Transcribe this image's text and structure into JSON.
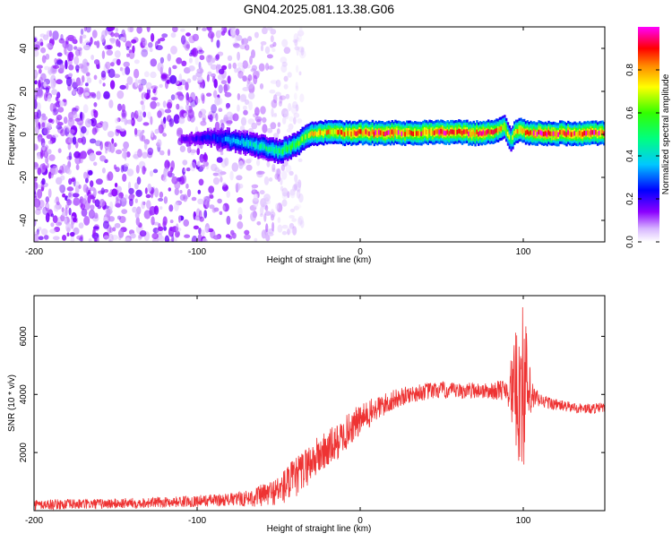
{
  "title": "GN04.2025.081.13.38.G06",
  "top_panel": {
    "xlabel": "Height of straight line (km)",
    "ylabel": "Frequency (Hz)",
    "colorbar_label": "Normalized spectral amplitude"
  },
  "bottom_panel": {
    "xlabel": "Height of straight line (km)",
    "ylabel": "SNR (10 * v/v)"
  },
  "chart_data": [
    {
      "type": "heatmap",
      "title": "GN04.2025.081.13.38.G06",
      "xlabel": "Height of straight line (km)",
      "ylabel": "Frequency (Hz)",
      "xlim": [
        -200,
        150
      ],
      "ylim": [
        -50,
        50
      ],
      "x_ticks": [
        -200,
        -100,
        0,
        100
      ],
      "y_ticks": [
        -40,
        -20,
        0,
        20,
        40
      ],
      "colorbar": {
        "label": "Normalized spectral amplitude",
        "range": [
          0,
          1
        ],
        "ticks": [
          0.0,
          0.2,
          0.4,
          0.6,
          0.8
        ],
        "colors": [
          "#ffffff",
          "#e9d5ff",
          "#8b00ff",
          "#0000ff",
          "#00c8ff",
          "#00ff66",
          "#ffff00",
          "#ff8800",
          "#ff0000",
          "#ff00ff"
        ]
      },
      "ridge": {
        "x": [
          -110,
          -100,
          -90,
          -80,
          -70,
          -60,
          -50,
          -40,
          -35,
          -30,
          -20,
          -10,
          0,
          10,
          20,
          30,
          40,
          50,
          60,
          70,
          80,
          88,
          92,
          95,
          98,
          102,
          110,
          120,
          130,
          140,
          150
        ],
        "y": [
          -2,
          -2,
          -1.5,
          -3,
          -4,
          -6,
          -8,
          -5,
          -2,
          0,
          1,
          0.5,
          1,
          0.5,
          1,
          0.5,
          1,
          0.8,
          1,
          0.5,
          1,
          3,
          -2,
          1,
          2,
          0.5,
          0.5,
          0.5,
          0.5,
          0.5,
          0.5
        ],
        "amplitude": [
          0.15,
          0.2,
          0.25,
          0.35,
          0.4,
          0.45,
          0.5,
          0.55,
          0.6,
          0.7,
          0.75,
          0.8,
          0.85,
          0.9,
          0.9,
          0.85,
          0.85,
          0.9,
          0.85,
          0.9,
          0.85,
          0.7,
          0.6,
          0.75,
          0.8,
          0.85,
          0.9,
          0.9,
          0.88,
          0.9,
          0.88
        ]
      },
      "noise_region": {
        "x_range": [
          -200,
          -40
        ],
        "amplitude": 0.15
      }
    },
    {
      "type": "line",
      "xlabel": "Height of straight line (km)",
      "ylabel": "SNR (10 * v/v)",
      "xlim": [
        -200,
        150
      ],
      "ylim": [
        0,
        7400
      ],
      "x_ticks": [
        -200,
        -100,
        0,
        100
      ],
      "y_ticks": [
        2000,
        4000,
        6000
      ],
      "color": "#ee3333",
      "series": [
        {
          "x": [
            -200,
            -180,
            -160,
            -140,
            -120,
            -100,
            -80,
            -70,
            -60,
            -50,
            -45,
            -40,
            -35,
            -30,
            -25,
            -20,
            -15,
            -10,
            -5,
            0,
            5,
            10,
            20,
            30,
            40,
            50,
            60,
            70,
            80,
            90,
            95,
            97,
            99,
            101,
            103,
            105,
            110,
            120,
            130,
            140,
            150
          ],
          "y": [
            200,
            220,
            230,
            260,
            290,
            330,
            380,
            420,
            520,
            700,
            900,
            1100,
            1400,
            1700,
            1900,
            2100,
            2300,
            2600,
            2900,
            3100,
            3300,
            3500,
            3800,
            4000,
            4100,
            4150,
            4100,
            4150,
            4100,
            4200,
            4100,
            4300,
            4400,
            4200,
            4000,
            3900,
            3800,
            3650,
            3550,
            3500,
            3550
          ],
          "spread": [
            180,
            180,
            180,
            180,
            180,
            200,
            220,
            280,
            400,
            500,
            700,
            700,
            700,
            700,
            700,
            700,
            650,
            600,
            600,
            550,
            500,
            450,
            350,
            300,
            300,
            300,
            280,
            280,
            280,
            400,
            1800,
            2800,
            3000,
            2800,
            1600,
            600,
            250,
            200,
            180,
            180,
            180
          ]
        }
      ]
    }
  ]
}
